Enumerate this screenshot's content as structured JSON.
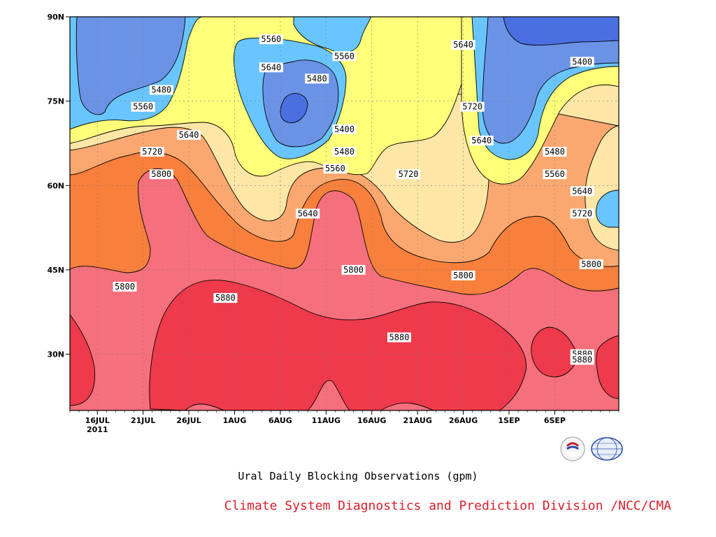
{
  "chart_data": {
    "type": "contour",
    "title": "Ural Daily Blocking Observations (gpm)",
    "credit": "Climate System Diagnostics and Prediction Division /NCC/CMA",
    "y_axis": {
      "ticks": [
        "90N",
        "75N",
        "60N",
        "45N",
        "30N"
      ],
      "values": [
        90,
        75,
        60,
        45,
        30
      ],
      "range": [
        20,
        90
      ]
    },
    "x_axis": {
      "ticks": [
        "16JUL",
        "21JUL",
        "26JUL",
        "1AUG",
        "6AUG",
        "11AUG",
        "16AUG",
        "21AUG",
        "26AUG",
        "1SEP",
        "6SEP"
      ],
      "year_label": "2011",
      "range_days": [
        0,
        60
      ]
    },
    "levels": [
      5400,
      5480,
      5560,
      5640,
      5720,
      5800,
      5880
    ],
    "level_colors": {
      "below_5400": "#4a6fe0",
      "5400_5480": "#6a93e6",
      "5480_5560": "#69c5ff",
      "5560_5640": "#ffff7a",
      "5640_5720": "#fde6a6",
      "5720_5800": "#fba870",
      "5800_5880": "#f8803c",
      "5880_plus_low": "#f5707c",
      "5880_plus": "#ee3a4a"
    },
    "contour_labels": [
      {
        "text": "5560",
        "day": 22,
        "lat": 86
      },
      {
        "text": "5640",
        "day": 22,
        "lat": 81
      },
      {
        "text": "5560",
        "day": 30,
        "lat": 83
      },
      {
        "text": "5480",
        "day": 27,
        "lat": 79
      },
      {
        "text": "5640",
        "day": 43,
        "lat": 85
      },
      {
        "text": "5400",
        "day": 56,
        "lat": 82
      },
      {
        "text": "5480",
        "day": 10,
        "lat": 77
      },
      {
        "text": "5560",
        "day": 8,
        "lat": 74
      },
      {
        "text": "5720",
        "day": 44,
        "lat": 74
      },
      {
        "text": "5400",
        "day": 30,
        "lat": 70
      },
      {
        "text": "5640",
        "day": 13,
        "lat": 69
      },
      {
        "text": "5640",
        "day": 45,
        "lat": 68
      },
      {
        "text": "5480",
        "day": 30,
        "lat": 66
      },
      {
        "text": "5720",
        "day": 9,
        "lat": 66
      },
      {
        "text": "5480",
        "day": 53,
        "lat": 66
      },
      {
        "text": "5560",
        "day": 29,
        "lat": 63
      },
      {
        "text": "5800",
        "day": 10,
        "lat": 62
      },
      {
        "text": "5720",
        "day": 37,
        "lat": 62
      },
      {
        "text": "5560",
        "day": 53,
        "lat": 62
      },
      {
        "text": "5640",
        "day": 56,
        "lat": 59
      },
      {
        "text": "5720",
        "day": 56,
        "lat": 55
      },
      {
        "text": "5640",
        "day": 26,
        "lat": 55
      },
      {
        "text": "5800",
        "day": 57,
        "lat": 46
      },
      {
        "text": "5800",
        "day": 31,
        "lat": 45
      },
      {
        "text": "5800",
        "day": 43,
        "lat": 44
      },
      {
        "text": "5800",
        "day": 6,
        "lat": 42
      },
      {
        "text": "5880",
        "day": 17,
        "lat": 40
      },
      {
        "text": "5880",
        "day": 36,
        "lat": 33
      },
      {
        "text": "5880",
        "day": 56,
        "lat": 30
      },
      {
        "text": "5880",
        "day": 56,
        "lat": 29
      }
    ]
  }
}
